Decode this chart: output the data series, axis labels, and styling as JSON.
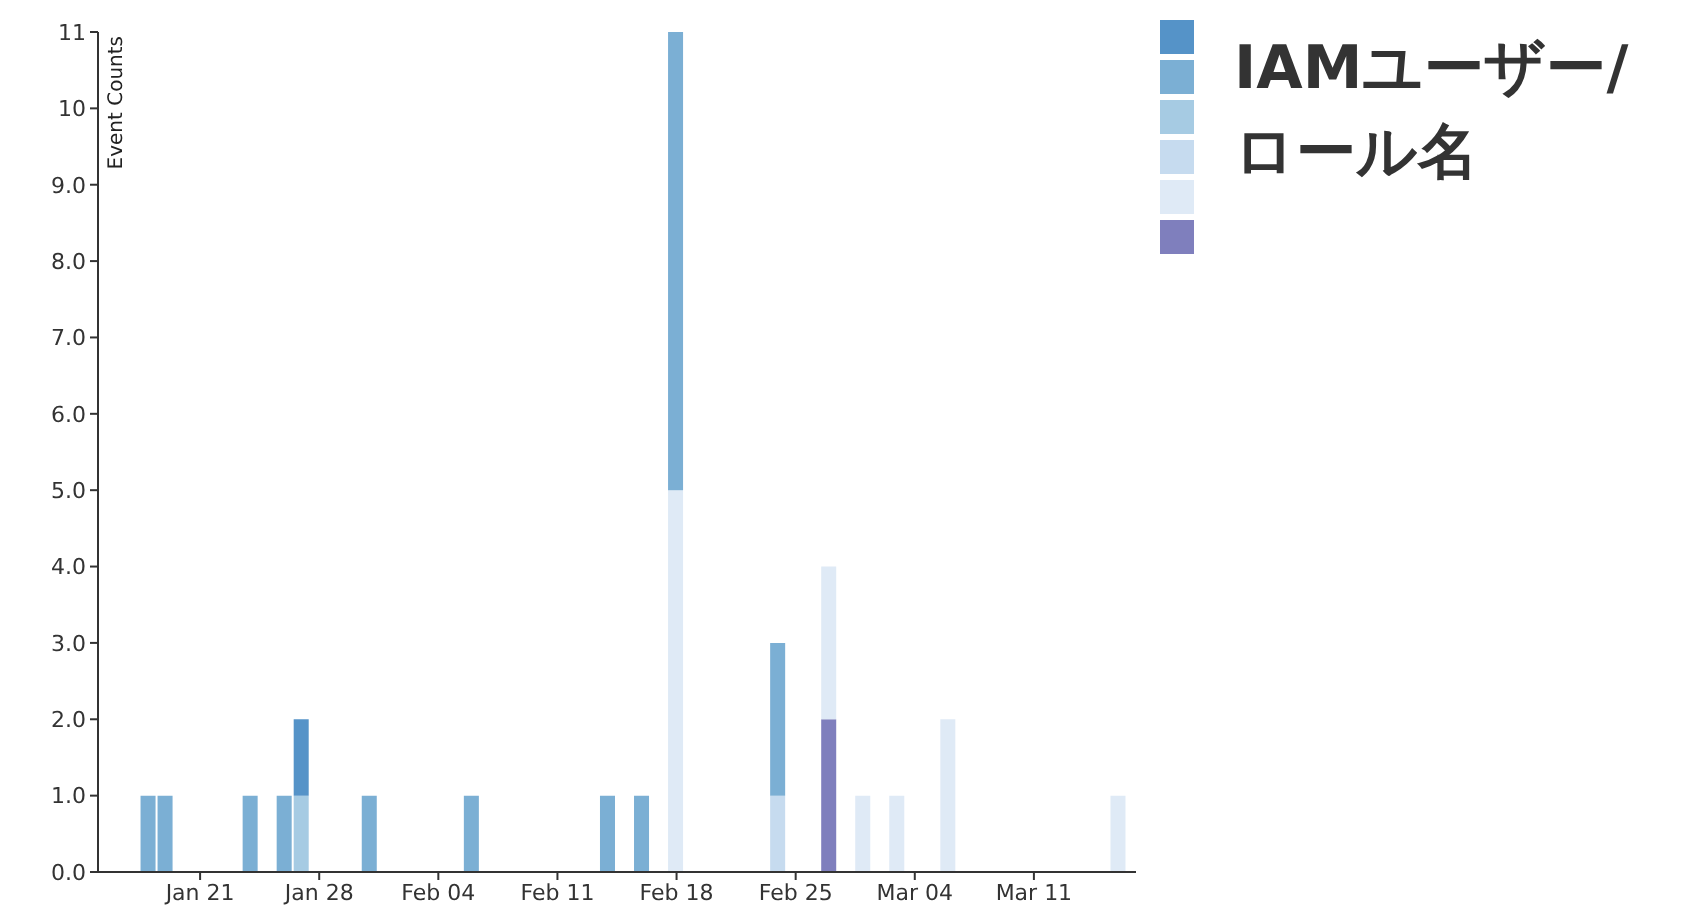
{
  "chart_data": {
    "type": "bar",
    "stacked": true,
    "ylabel": "Event Counts",
    "legend_title": "IAMユーザー/ロール名",
    "x": [
      "--01-18",
      "--01-19",
      "--01-24",
      "--01-26",
      "--01-27",
      "--01-31",
      "--02-06",
      "--02-14",
      "--02-16",
      "--02-18",
      "--02-24",
      "--02-27",
      "--03-01",
      "--03-03",
      "--03-06",
      "--03-16"
    ],
    "series": [
      {
        "color": "#7f7fbd",
        "values": [
          null,
          null,
          null,
          null,
          null,
          null,
          null,
          null,
          null,
          null,
          null,
          2,
          null,
          null,
          null,
          null
        ]
      },
      {
        "color": "#dfeaf6",
        "values": [
          null,
          null,
          null,
          null,
          null,
          null,
          null,
          null,
          null,
          5,
          null,
          2,
          1,
          1,
          2,
          1
        ]
      },
      {
        "color": "#c6dbef",
        "values": [
          null,
          null,
          null,
          null,
          null,
          null,
          null,
          null,
          null,
          null,
          1,
          null,
          null,
          null,
          null,
          null
        ]
      },
      {
        "color": "#a6cbe3",
        "values": [
          null,
          null,
          null,
          null,
          1,
          null,
          null,
          null,
          null,
          null,
          null,
          null,
          null,
          null,
          null,
          null
        ]
      },
      {
        "color": "#7bafd4",
        "values": [
          1,
          1,
          1,
          1,
          null,
          1,
          1,
          1,
          1,
          6,
          2,
          null,
          null,
          null,
          null,
          null
        ]
      },
      {
        "color": "#5593c8",
        "values": [
          null,
          null,
          null,
          null,
          1,
          null,
          null,
          null,
          null,
          null,
          null,
          null,
          null,
          null,
          null,
          null
        ]
      }
    ],
    "xlim": [
      "--01-15",
      "--03-17"
    ],
    "xticks": [
      {
        "value": "--01-21",
        "label": "Jan 21"
      },
      {
        "value": "--01-28",
        "label": "Jan 28"
      },
      {
        "value": "--02-04",
        "label": "Feb 04"
      },
      {
        "value": "--02-11",
        "label": "Feb 11"
      },
      {
        "value": "--02-18",
        "label": "Feb 18"
      },
      {
        "value": "--02-25",
        "label": "Feb 25"
      },
      {
        "value": "--03-04",
        "label": "Mar 04"
      },
      {
        "value": "--03-11",
        "label": "Mar 11"
      }
    ],
    "ylim": [
      0,
      11
    ],
    "yticks": [
      {
        "value": 0,
        "label": "0.0"
      },
      {
        "value": 1,
        "label": "1.0"
      },
      {
        "value": 2,
        "label": "2.0"
      },
      {
        "value": 3,
        "label": "3.0"
      },
      {
        "value": 4,
        "label": "4.0"
      },
      {
        "value": 5,
        "label": "5.0"
      },
      {
        "value": 6,
        "label": "6.0"
      },
      {
        "value": 7,
        "label": "7.0"
      },
      {
        "value": 8,
        "label": "8.0"
      },
      {
        "value": 9,
        "label": "9.0"
      },
      10,
      11
    ]
  }
}
